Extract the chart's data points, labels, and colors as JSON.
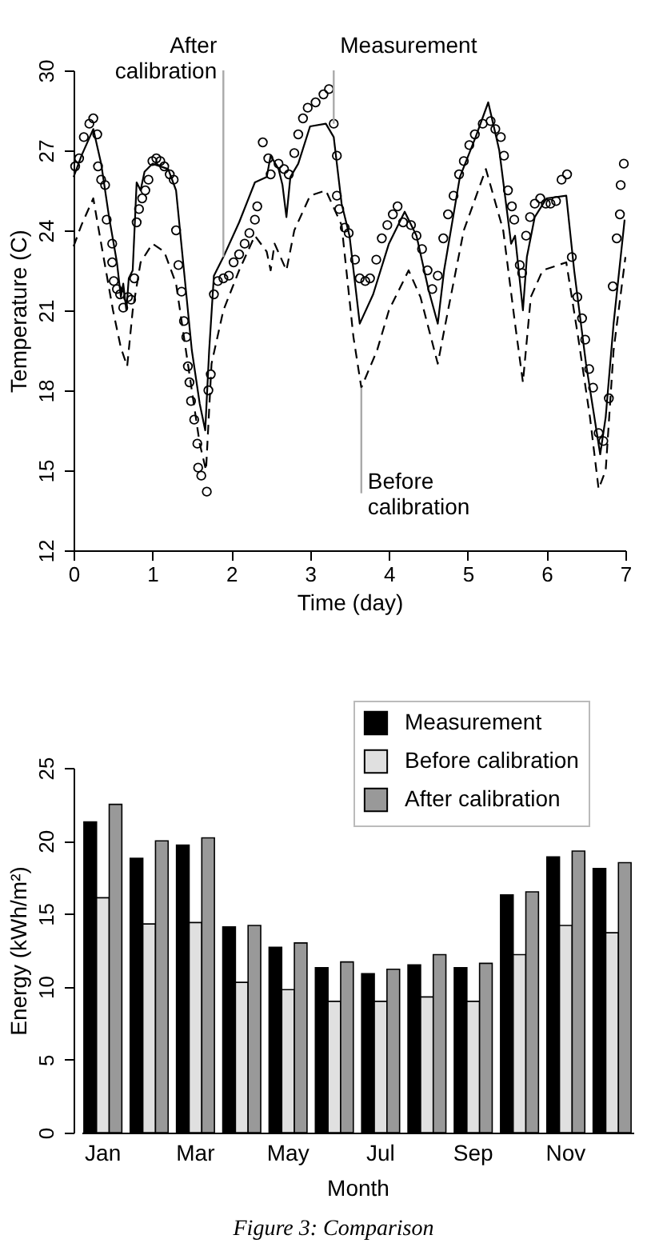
{
  "chart_data": [
    {
      "type": "line",
      "xlabel": "Time (day)",
      "ylabel": "Temperature (C)",
      "xlim": [
        0,
        7
      ],
      "xticks": [
        0,
        1,
        2,
        3,
        4,
        5,
        6,
        7
      ],
      "ylim": [
        12,
        30
      ],
      "yticks": [
        12,
        15,
        18,
        21,
        24,
        27,
        30
      ],
      "grid": false,
      "series": [
        {
          "type": "scatter",
          "marker": "circle",
          "color": "#000000",
          "x": [
            0.02,
            0.07,
            0.13,
            0.2,
            0.25,
            0.3,
            0.31,
            0.35,
            0.4,
            0.42,
            0.49,
            0.49,
            0.51,
            0.55,
            0.59,
            0.63,
            0.69,
            0.73,
            0.77,
            0.8,
            0.83,
            0.87,
            0.91,
            0.95,
            1.0,
            1.05,
            1.1,
            1.15,
            1.22,
            1.27,
            1.3,
            1.33,
            1.37,
            1.4,
            1.43,
            1.45,
            1.47,
            1.49,
            1.53,
            1.57,
            1.58,
            1.62,
            1.69,
            1.71,
            1.74,
            1.78,
            1.83,
            1.9,
            1.97,
            2.03,
            2.1,
            2.17,
            2.23,
            2.3,
            2.33,
            2.4,
            2.47,
            2.5,
            2.6,
            2.67,
            2.73,
            2.8,
            2.85,
            2.91,
            2.97,
            3.07,
            3.17,
            3.24,
            3.3,
            3.34,
            3.34,
            3.37,
            3.44,
            3.49,
            3.57,
            3.63,
            3.7,
            3.76,
            3.84,
            3.91,
            3.98,
            4.05,
            4.11,
            4.18,
            4.28,
            4.35,
            4.42,
            4.49,
            4.55,
            4.62,
            4.69,
            4.75,
            4.82,
            4.89,
            4.95,
            5.02,
            5.09,
            5.19,
            5.29,
            5.35,
            5.42,
            5.46,
            5.51,
            5.56,
            5.59,
            5.66,
            5.69,
            5.74,
            5.79,
            5.85,
            5.92,
            5.99,
            6.05,
            6.12,
            6.19,
            6.26,
            6.32,
            6.39,
            6.45,
            6.49,
            6.54,
            6.59,
            6.66,
            6.72,
            6.79,
            6.84,
            6.89,
            6.93,
            6.94,
            6.98
          ],
          "values": [
            26.4,
            26.7,
            27.5,
            28.0,
            28.2,
            27.6,
            26.4,
            25.9,
            25.7,
            24.4,
            23.5,
            22.8,
            22.1,
            21.8,
            21.6,
            21.1,
            21.5,
            21.4,
            22.2,
            24.3,
            24.8,
            25.2,
            25.5,
            25.9,
            26.6,
            26.7,
            26.6,
            26.4,
            26.1,
            25.9,
            24.0,
            22.7,
            21.7,
            20.6,
            20.0,
            18.9,
            18.3,
            17.6,
            16.9,
            16.0,
            15.1,
            14.8,
            14.2,
            18.0,
            18.6,
            21.6,
            22.1,
            22.2,
            22.3,
            22.8,
            23.1,
            23.5,
            23.9,
            24.4,
            24.9,
            27.3,
            26.7,
            26.1,
            26.5,
            26.3,
            26.1,
            26.9,
            27.6,
            28.2,
            28.6,
            28.8,
            29.1,
            29.3,
            28.0,
            26.8,
            25.3,
            24.8,
            24.1,
            23.9,
            22.9,
            22.2,
            22.1,
            22.2,
            22.9,
            23.7,
            24.2,
            24.6,
            24.9,
            24.3,
            24.2,
            23.8,
            23.3,
            22.5,
            21.8,
            22.3,
            23.7,
            24.6,
            25.3,
            26.1,
            26.6,
            27.2,
            27.6,
            28.0,
            28.1,
            27.8,
            27.5,
            26.8,
            25.5,
            24.9,
            24.4,
            22.7,
            22.4,
            23.8,
            24.5,
            25.0,
            25.2,
            25.0,
            25.0,
            25.1,
            25.9,
            26.1,
            23.0,
            21.5,
            20.7,
            19.9,
            18.8,
            18.1,
            16.4,
            16.1,
            17.7,
            21.9,
            23.7,
            24.6,
            25.7,
            26.5
          ]
        },
        {
          "type": "line",
          "line_style": "solid",
          "color": "#000000",
          "x": [
            0,
            0.1,
            0.25,
            0.35,
            0.45,
            0.55,
            0.6,
            0.63,
            0.67,
            0.7,
            0.75,
            0.8,
            0.85,
            0.9,
            1.0,
            1.2,
            1.3,
            1.4,
            1.5,
            1.6,
            1.67,
            1.72,
            1.78,
            1.9,
            2.1,
            2.3,
            2.45,
            2.5,
            2.6,
            2.65,
            2.7,
            2.75,
            2.85,
            3.0,
            3.2,
            3.3,
            3.4,
            3.5,
            3.63,
            3.8,
            4.0,
            4.2,
            4.35,
            4.5,
            4.62,
            4.7,
            4.9,
            5.1,
            5.26,
            5.4,
            5.55,
            5.6,
            5.7,
            5.75,
            5.85,
            6.0,
            6.25,
            6.35,
            6.5,
            6.68,
            6.75,
            6.85,
            6.99
          ],
          "values": [
            26.0,
            26.8,
            27.8,
            26.5,
            24.5,
            22.8,
            21.5,
            22.0,
            21.0,
            22.2,
            22.5,
            25.8,
            25.5,
            26.2,
            26.5,
            26.3,
            25.5,
            22.5,
            19.5,
            17.5,
            16.5,
            19.5,
            22.3,
            23.0,
            24.3,
            25.8,
            26.0,
            26.8,
            26.3,
            25.7,
            24.5,
            26.0,
            26.5,
            27.9,
            28.0,
            27.5,
            25.0,
            23.8,
            20.5,
            21.6,
            23.5,
            24.7,
            23.8,
            21.8,
            20.5,
            22.5,
            26.0,
            27.5,
            28.8,
            27.0,
            23.5,
            23.8,
            21.0,
            23.0,
            24.5,
            25.2,
            25.3,
            22.5,
            19.0,
            15.6,
            17.0,
            20.5,
            24.4
          ]
        },
        {
          "type": "line",
          "line_style": "dashed",
          "color": "#000000",
          "x": [
            0,
            0.1,
            0.25,
            0.35,
            0.5,
            0.6,
            0.68,
            0.75,
            0.85,
            1.0,
            1.15,
            1.3,
            1.45,
            1.6,
            1.68,
            1.75,
            1.9,
            2.1,
            2.3,
            2.45,
            2.5,
            2.55,
            2.7,
            2.8,
            3.0,
            3.2,
            3.4,
            3.55,
            3.65,
            3.85,
            4.0,
            4.25,
            4.4,
            4.62,
            4.75,
            4.95,
            5.23,
            5.45,
            5.6,
            5.7,
            5.8,
            5.95,
            6.25,
            6.4,
            6.55,
            6.66,
            6.75,
            6.85,
            7.0
          ],
          "values": [
            23.4,
            24.2,
            25.2,
            23.5,
            21.0,
            19.6,
            18.9,
            21.0,
            22.8,
            23.5,
            23.2,
            22.0,
            19.0,
            16.0,
            15.0,
            19.0,
            21.0,
            22.5,
            23.8,
            23.2,
            22.5,
            23.5,
            22.5,
            24.0,
            25.3,
            25.5,
            24.2,
            20.0,
            18.1,
            19.5,
            21.0,
            22.5,
            21.5,
            19.0,
            21.0,
            24.0,
            26.3,
            24.0,
            20.5,
            18.3,
            21.5,
            22.5,
            22.8,
            20.0,
            17.0,
            14.3,
            15.0,
            19.5,
            23.0
          ]
        }
      ],
      "annotations": [
        {
          "text": "After calibration",
          "x": 1.9,
          "y": 23.0
        },
        {
          "text": "Measurement",
          "x": 3.3,
          "y": 28.0
        },
        {
          "text": "Before calibration",
          "x": 3.65,
          "y": 18.1
        }
      ]
    },
    {
      "type": "bar",
      "xlabel": "Month",
      "ylabel": "Energy (kWh/m²)",
      "categories": [
        "Jan",
        null,
        "Mar",
        null,
        "May",
        null,
        "Jul",
        null,
        "Sep",
        null,
        "Nov",
        null
      ],
      "ylim": [
        0,
        25
      ],
      "yticks": [
        0,
        5,
        10,
        15,
        20,
        25
      ],
      "grid": false,
      "legend": "top right",
      "series": [
        {
          "name": "Measurement",
          "color": "#000000",
          "values": [
            21.3,
            18.8,
            19.7,
            14.1,
            12.7,
            11.3,
            10.9,
            11.5,
            11.3,
            16.3,
            18.9,
            18.1
          ]
        },
        {
          "name": "Before calibration",
          "color": "#e0e0e0",
          "values": [
            16.1,
            14.3,
            14.4,
            10.3,
            9.8,
            9.0,
            9.0,
            9.3,
            9.0,
            12.2,
            14.2,
            13.7
          ]
        },
        {
          "name": "After calibration",
          "color": "#999999",
          "values": [
            22.5,
            20.0,
            20.2,
            14.2,
            13.0,
            11.7,
            11.2,
            12.2,
            11.6,
            16.5,
            19.3,
            18.5
          ]
        }
      ],
      "annotations": [
        "Figure 3: Comparison"
      ]
    }
  ]
}
